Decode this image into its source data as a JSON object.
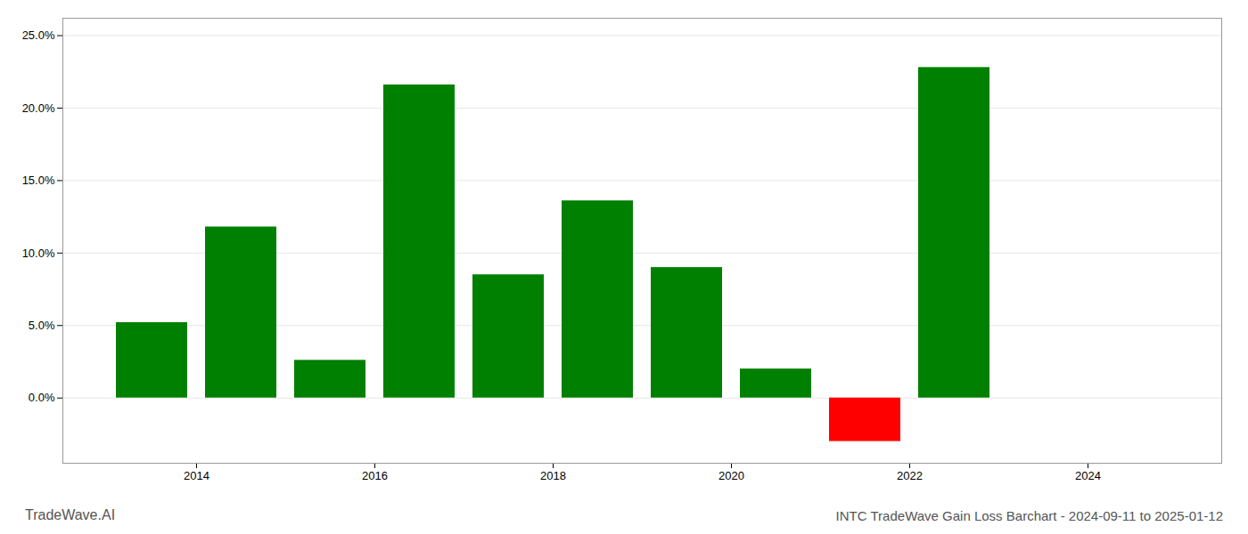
{
  "chart_data": {
    "type": "bar",
    "title": "INTC TradeWave Gain Loss Barchart - 2024-09-11 to 2025-01-12",
    "annotations": [
      "TradeWave.AI"
    ],
    "x": [
      2013.5,
      2014.5,
      2015.5,
      2016.5,
      2017.5,
      2018.5,
      2019.5,
      2020.5,
      2021.5,
      2022.5
    ],
    "values": [
      0.052,
      0.118,
      0.026,
      0.216,
      0.085,
      0.136,
      0.09,
      0.02,
      -0.03,
      0.228
    ],
    "colors": [
      "#008000",
      "#008000",
      "#008000",
      "#008000",
      "#008000",
      "#008000",
      "#008000",
      "#008000",
      "#ff0000",
      "#008000"
    ],
    "xlim": [
      2012.5,
      2025.5
    ],
    "xticks": [
      2014,
      2016,
      2018,
      2020,
      2022,
      2024
    ],
    "ylim": [
      -0.045,
      0.262
    ],
    "yticks": [
      {
        "value": 0.0,
        "label": "0.0%"
      },
      {
        "value": 0.05,
        "label": "5.0%"
      },
      {
        "value": 0.1,
        "label": "10.0%"
      },
      {
        "value": 0.15,
        "label": "15.0%"
      },
      {
        "value": 0.2,
        "label": "20.0%"
      },
      {
        "value": 0.25,
        "label": "25.0%"
      }
    ],
    "grid": true
  }
}
